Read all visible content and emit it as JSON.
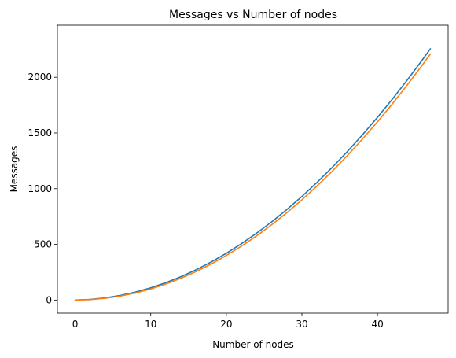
{
  "chart_data": {
    "type": "line",
    "title": "Messages vs Number of nodes",
    "xlabel": "Number of nodes",
    "ylabel": "Messages",
    "xlim": [
      -2.35,
      49.35
    ],
    "ylim": [
      -117.5,
      2467.5
    ],
    "xticks": [
      0,
      10,
      20,
      30,
      40
    ],
    "yticks": [
      0,
      500,
      1000,
      1500,
      2000
    ],
    "grid": false,
    "legend": "none",
    "x": [
      0,
      2,
      4,
      6,
      8,
      10,
      12,
      14,
      16,
      18,
      20,
      22,
      24,
      26,
      28,
      30,
      32,
      34,
      36,
      38,
      40,
      42,
      44,
      46,
      47
    ],
    "series": [
      {
        "color": "#1f77b4",
        "values": [
          0,
          6,
          20,
          42,
          72,
          110,
          156,
          210,
          272,
          342,
          420,
          506,
          600,
          702,
          812,
          930,
          1056,
          1190,
          1332,
          1482,
          1640,
          1806,
          1980,
          2162,
          2256
        ]
      },
      {
        "color": "#ff7f0e",
        "values": [
          0,
          4,
          16,
          36,
          64,
          100,
          144,
          196,
          256,
          324,
          400,
          484,
          576,
          676,
          784,
          900,
          1024,
          1156,
          1296,
          1444,
          1600,
          1764,
          1936,
          2116,
          2209
        ]
      }
    ]
  }
}
